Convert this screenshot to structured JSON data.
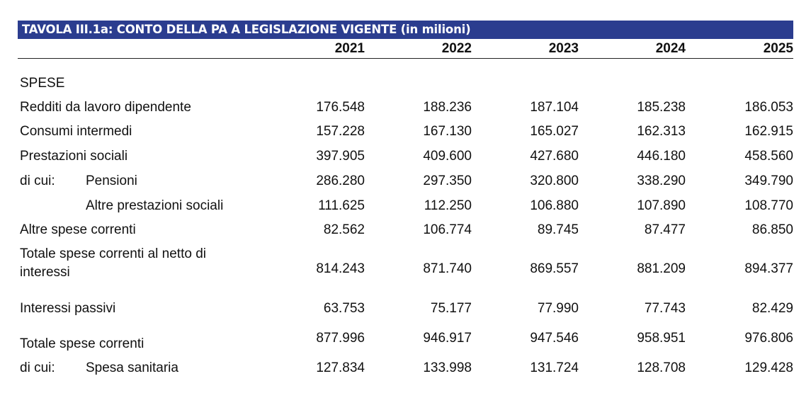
{
  "table": {
    "title": "TAVOLA III.1a: CONTO DELLA PA A LEGISLAZIONE VIGENTE (in milioni)",
    "years": [
      "2021",
      "2022",
      "2023",
      "2024",
      "2025"
    ],
    "section_label": "SPESE",
    "rows": [
      {
        "label": "Redditi da lavoro dipendente",
        "values": [
          "176.548",
          "188.236",
          "187.104",
          "185.238",
          "186.053"
        ]
      },
      {
        "label": "Consumi intermedi",
        "values": [
          "157.228",
          "167.130",
          "165.027",
          "162.313",
          "162.915"
        ]
      },
      {
        "label": "Prestazioni sociali",
        "values": [
          "397.905",
          "409.600",
          "427.680",
          "446.180",
          "458.560"
        ]
      },
      {
        "prefix": "di cui:",
        "sublabel": "Pensioni",
        "values": [
          "286.280",
          "297.350",
          "320.800",
          "338.290",
          "349.790"
        ]
      },
      {
        "sublabel": "Altre prestazioni sociali",
        "values": [
          "111.625",
          "112.250",
          "106.880",
          "107.890",
          "108.770"
        ]
      },
      {
        "label": "Altre spese correnti",
        "values": [
          "82.562",
          "106.774",
          "89.745",
          "87.477",
          "86.850"
        ]
      },
      {
        "label_line1": "Totale spese correnti al netto di",
        "label_line2": "interessi",
        "values": [
          "814.243",
          "871.740",
          "869.557",
          "881.209",
          "894.377"
        ]
      },
      {
        "label": "Interessi passivi",
        "values": [
          "63.753",
          "75.177",
          "77.990",
          "77.743",
          "82.429"
        ]
      },
      {
        "label": "Totale spese correnti",
        "values": [
          "877.996",
          "946.917",
          "947.546",
          "958.951",
          "976.806"
        ]
      },
      {
        "prefix": "di cui:",
        "sublabel": "Spesa sanitaria",
        "values": [
          "127.834",
          "133.998",
          "131.724",
          "128.708",
          "129.428"
        ]
      }
    ]
  }
}
